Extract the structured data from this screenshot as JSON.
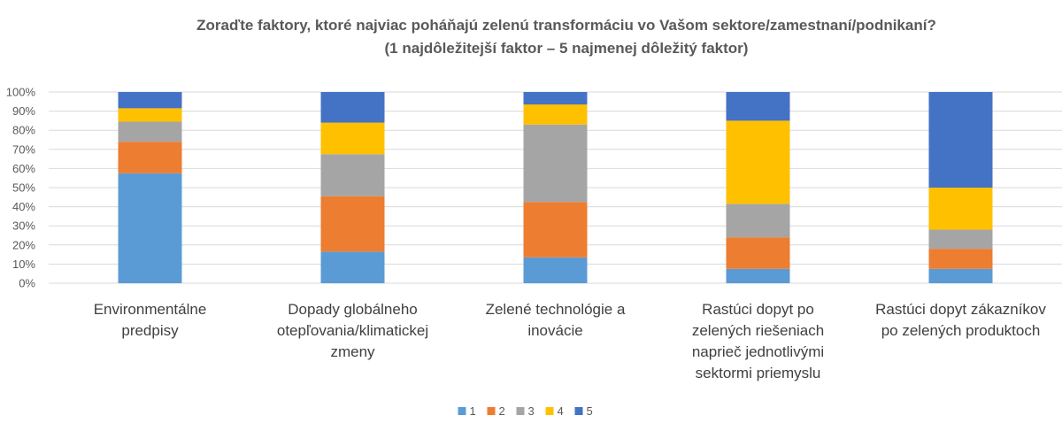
{
  "chart_data": {
    "type": "bar",
    "stacked": true,
    "percent": true,
    "title": [
      "Zoraďte faktory, ktoré najviac poháňajú zelenú transformáciu vo Vašom sektore/zamestnaní/podnikaní?",
      "(1 najdôležitejší faktor – 5 najmenej dôležitý faktor)"
    ],
    "categories": [
      [
        "Environmentálne",
        "predpisy"
      ],
      [
        "Dopady globálneho",
        "otepľovania/klimatickej",
        "zmeny"
      ],
      [
        "Zelené technológie a",
        "inovácie"
      ],
      [
        "Rastúci dopyt po",
        "zelených riešeniach",
        "naprieč jednotlivými",
        "sektormi priemyslu"
      ],
      [
        "Rastúci dopyt zákazníkov",
        "po zelených produktoch"
      ]
    ],
    "series": [
      {
        "name": "1",
        "color": "#5B9BD5",
        "values": [
          57.5,
          16.5,
          13.5,
          7.5,
          7.5
        ]
      },
      {
        "name": "2",
        "color": "#ED7D31",
        "values": [
          16.5,
          29,
          29,
          16.5,
          10.5
        ]
      },
      {
        "name": "3",
        "color": "#A5A5A5",
        "values": [
          10.5,
          22,
          40.5,
          17.5,
          10
        ]
      },
      {
        "name": "4",
        "color": "#FFC000",
        "values": [
          7,
          16.5,
          10.5,
          43.5,
          22
        ]
      },
      {
        "name": "5",
        "color": "#4472C4",
        "values": [
          8.5,
          16,
          6.5,
          15,
          50
        ]
      }
    ],
    "yticks": [
      "0%",
      "10%",
      "20%",
      "30%",
      "40%",
      "50%",
      "60%",
      "70%",
      "80%",
      "90%",
      "100%"
    ],
    "ylim": [
      0,
      100
    ],
    "legend_position": "bottom",
    "grid": true
  }
}
